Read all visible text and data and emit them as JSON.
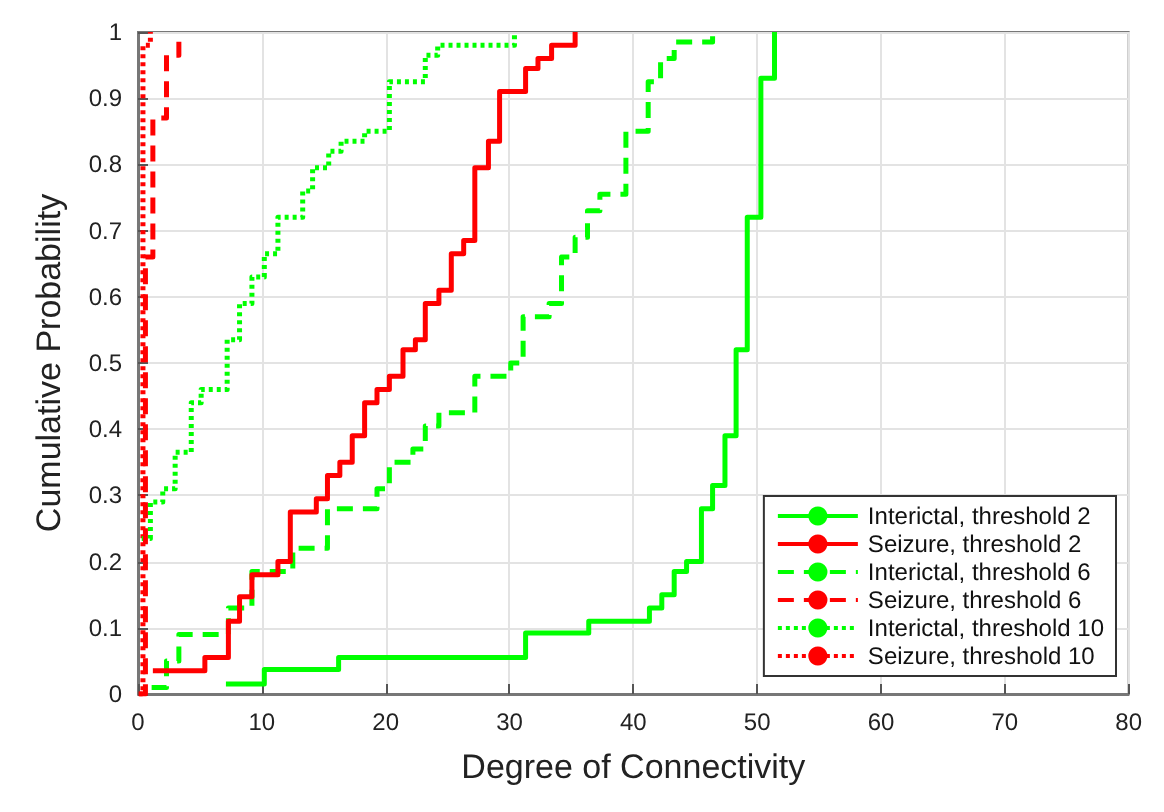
{
  "chart_data": {
    "type": "step",
    "xlabel": "Degree of Connectivity",
    "ylabel": "Cumulative Probability",
    "xlim": [
      0,
      80
    ],
    "xticks": [
      0,
      10,
      20,
      30,
      40,
      50,
      60,
      70,
      80
    ],
    "ylim": [
      0,
      1
    ],
    "yticks": [
      0,
      0.1,
      0.2,
      0.3,
      0.4,
      0.5,
      0.6,
      0.7,
      0.8,
      0.9,
      1
    ],
    "grid": true,
    "legend": "bottom right",
    "marker": "none",
    "series": [
      {
        "name": "Interictal, threshold 2",
        "color": "#00ff00",
        "line_style": "solid",
        "x": [
          7.1,
          10.2,
          16.2,
          31.3,
          36.4,
          41.3,
          42.3,
          43.3,
          44.3,
          45.5,
          46.4,
          47.4,
          48.3,
          49.2,
          50.3,
          51.4
        ],
        "values": [
          0.015,
          0.037,
          0.055,
          0.092,
          0.11,
          0.13,
          0.15,
          0.185,
          0.2,
          0.28,
          0.315,
          0.39,
          0.52,
          0.72,
          0.93,
          1
        ]
      },
      {
        "name": "Seizure, threshold 2",
        "color": "#ff0000",
        "line_style": "solid",
        "x": [
          1.2,
          5.4,
          7.3,
          8.2,
          9.2,
          11.3,
          12.3,
          14.4,
          15.3,
          16.3,
          17.3,
          18.3,
          19.3,
          20.3,
          21.4,
          22.4,
          23.2,
          24.3,
          25.3,
          26.3,
          27.2,
          28.3,
          29.2,
          31.3,
          32.3,
          33.4,
          35.3
        ],
        "values": [
          0.035,
          0.055,
          0.11,
          0.147,
          0.18,
          0.2,
          0.275,
          0.295,
          0.33,
          0.35,
          0.39,
          0.44,
          0.46,
          0.48,
          0.52,
          0.535,
          0.59,
          0.61,
          0.665,
          0.685,
          0.795,
          0.835,
          0.91,
          0.945,
          0.96,
          0.98,
          1
        ]
      },
      {
        "name": "Interictal, threshold 6",
        "color": "#00ff00",
        "line_style": "dashed",
        "x": [
          1.1,
          2.3,
          3.3,
          7.3,
          9.2,
          12.5,
          15.3,
          19.3,
          20.3,
          22.2,
          23.2,
          24.3,
          27.2,
          30.1,
          31.1,
          33.2,
          34.2,
          35.3,
          36.3,
          37.3,
          39.4,
          41.2,
          42.2,
          43.3,
          46.4
        ],
        "values": [
          0.01,
          0.05,
          0.09,
          0.13,
          0.185,
          0.22,
          0.28,
          0.31,
          0.35,
          0.37,
          0.405,
          0.425,
          0.48,
          0.5,
          0.57,
          0.59,
          0.66,
          0.69,
          0.73,
          0.755,
          0.85,
          0.925,
          0.96,
          0.985,
          1
        ]
      },
      {
        "name": "Seizure, threshold 6",
        "color": "#ff0000",
        "line_style": "dashed",
        "x": [
          0.1,
          0.6,
          1.2,
          2.3,
          3.3
        ],
        "values": [
          0,
          0.66,
          0.87,
          0.965,
          1
        ]
      },
      {
        "name": "Interictal, threshold 10",
        "color": "#00ff00",
        "line_style": "dotted",
        "x": [
          0.3,
          1,
          2,
          3,
          4.3,
          5.1,
          7.2,
          8.2,
          9.2,
          10.2,
          11.3,
          13.3,
          14.1,
          15.4,
          16.4,
          18.3,
          20.3,
          23.2,
          24.2,
          30.4
        ],
        "values": [
          0.235,
          0.29,
          0.31,
          0.365,
          0.44,
          0.46,
          0.535,
          0.59,
          0.63,
          0.665,
          0.72,
          0.76,
          0.795,
          0.82,
          0.835,
          0.85,
          0.925,
          0.965,
          0.98,
          1
        ]
      },
      {
        "name": "Seizure, threshold 10",
        "color": "#ff0000",
        "line_style": "dotted",
        "x": [
          0.05,
          0.4,
          1
        ],
        "values": [
          0,
          0.98,
          1
        ]
      }
    ]
  }
}
